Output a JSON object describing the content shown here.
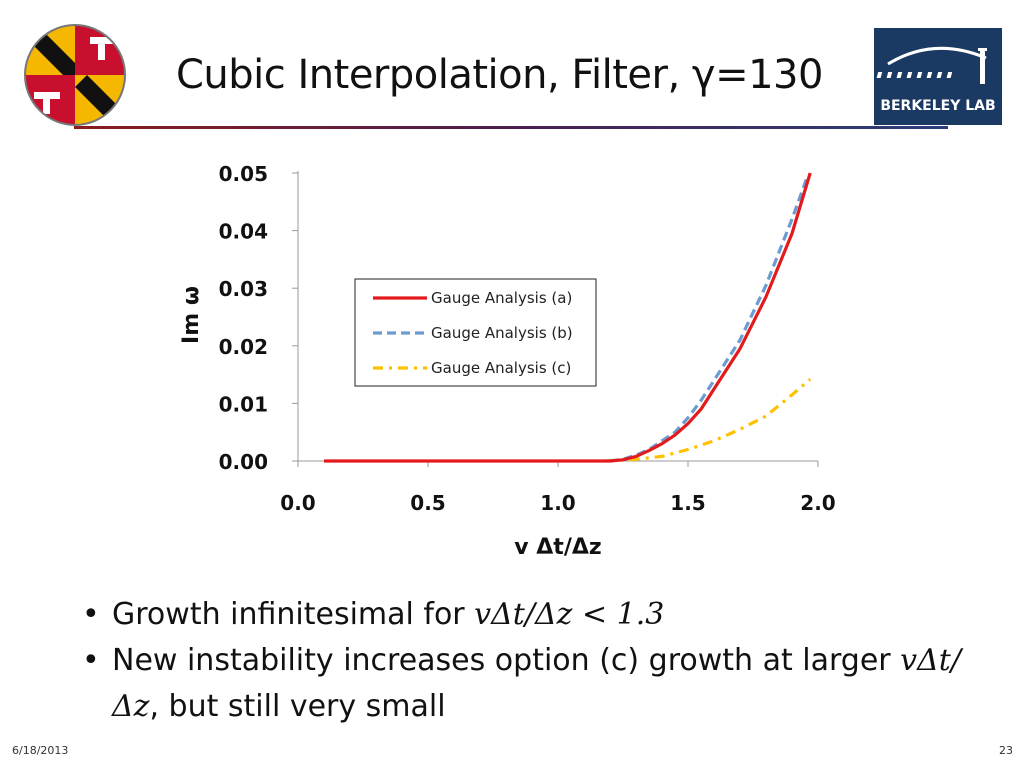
{
  "slide": {
    "title": "Cubic Interpolation, Filter, γ=130",
    "logo_right_text": "BERKELEY LAB",
    "date": "6/18/2013",
    "page_number": "23",
    "bullets": [
      {
        "text_before": "Growth infinitesimal for ",
        "math": "vΔt/Δz < 1.3",
        "text_after": ""
      },
      {
        "text_before": "New instability increases option (c) growth at larger ",
        "math": "vΔt/Δz",
        "text_after": ", but still very small"
      }
    ]
  },
  "colors": {
    "series_a": "#e31a1c",
    "series_b": "#6b9bd1",
    "series_c": "#ffc000",
    "title_rule": "#6b1d3a",
    "lbl_bg": "#1b3a63"
  },
  "chart_data": {
    "type": "line",
    "title": "",
    "xlabel": "v Δt/Δz",
    "ylabel": "Im ω",
    "xlim": [
      0.0,
      2.0
    ],
    "ylim": [
      0.0,
      0.05
    ],
    "xticks": [
      "0.0",
      "0.5",
      "1.0",
      "1.5",
      "2.0"
    ],
    "yticks": [
      "0.00",
      "0.01",
      "0.02",
      "0.03",
      "0.04",
      "0.05"
    ],
    "grid": false,
    "legend_position": "center",
    "series": [
      {
        "name": "Gauge Analysis (a)",
        "style": "solid",
        "x": [
          0.1,
          0.5,
          1.0,
          1.2,
          1.25,
          1.3,
          1.35,
          1.4,
          1.45,
          1.5,
          1.55,
          1.6,
          1.7,
          1.8,
          1.9,
          1.97
        ],
        "y": [
          0.0,
          0.0,
          0.0,
          0.0,
          0.0002,
          0.0008,
          0.0018,
          0.003,
          0.0045,
          0.0065,
          0.009,
          0.0125,
          0.0195,
          0.0285,
          0.0395,
          0.05
        ]
      },
      {
        "name": "Gauge Analysis (b)",
        "style": "dashed",
        "x": [
          1.2,
          1.25,
          1.3,
          1.35,
          1.4,
          1.45,
          1.5,
          1.55,
          1.6,
          1.7,
          1.8,
          1.9,
          1.96
        ],
        "y": [
          0.0,
          0.0003,
          0.001,
          0.002,
          0.0035,
          0.005,
          0.0075,
          0.0105,
          0.014,
          0.021,
          0.0305,
          0.042,
          0.0495
        ]
      },
      {
        "name": "Gauge Analysis (c)",
        "style": "dashdot",
        "x": [
          1.18,
          1.3,
          1.4,
          1.5,
          1.6,
          1.7,
          1.8,
          1.9,
          1.97
        ],
        "y": [
          0.0,
          0.0003,
          0.0008,
          0.002,
          0.0035,
          0.0055,
          0.0078,
          0.0115,
          0.0142
        ]
      }
    ]
  }
}
